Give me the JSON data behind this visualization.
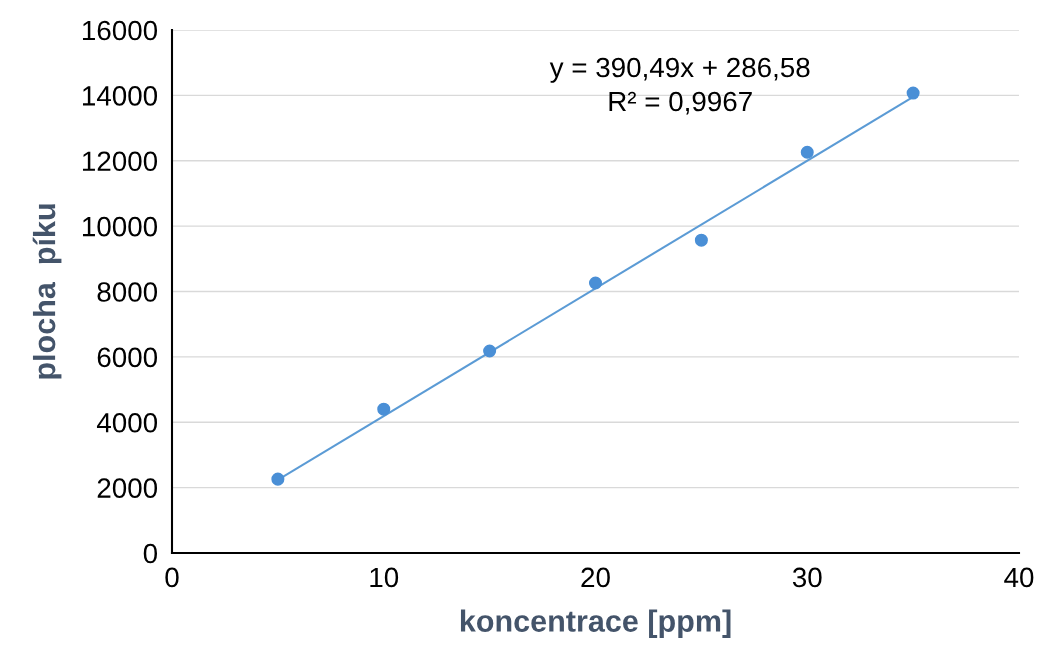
{
  "chart_data": {
    "type": "scatter",
    "xlabel": "koncentrace [ppm]",
    "ylabel": "plocha  píku",
    "x": [
      5,
      10,
      15,
      20,
      25,
      30,
      35
    ],
    "series": [
      {
        "color": "#4a8fd6",
        "values": [
          2260,
          4400,
          6180,
          8260,
          9570,
          12260,
          14070
        ],
        "marker": "circle"
      },
      {
        "type": "line",
        "color": "#5b9bd5",
        "x": [
          5,
          35
        ],
        "values": [
          2240,
          13950
        ],
        "marker": "none",
        "line_style": "solid"
      }
    ],
    "annotations": [
      "y = 390,49x + 286,58",
      "R² = 0,9967"
    ],
    "xlim": [
      0,
      40
    ],
    "xticks": [
      0,
      10,
      20,
      30,
      40
    ],
    "ylim": [
      0,
      16000
    ],
    "yticks": [
      0,
      2000,
      4000,
      6000,
      8000,
      10000,
      12000,
      14000,
      16000
    ],
    "grid": "y",
    "legend": false
  }
}
